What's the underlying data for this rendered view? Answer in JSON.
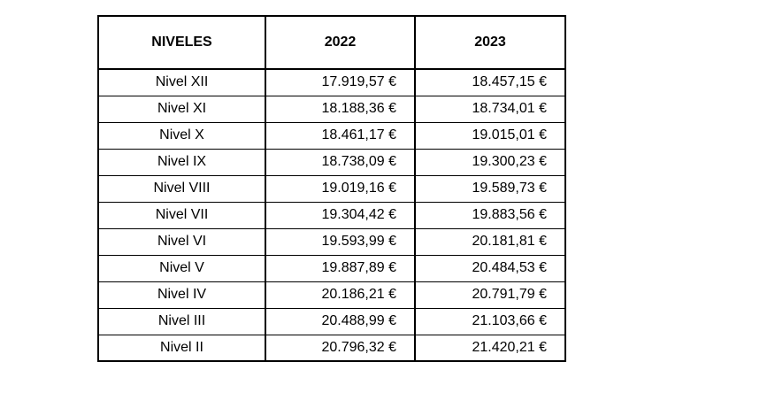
{
  "table": {
    "headers": {
      "level": "NIVELES",
      "y2022": "2022",
      "y2023": "2023"
    },
    "rows": [
      {
        "level": "Nivel XII",
        "y2022": "17.919,57 €",
        "y2023": "18.457,15 €"
      },
      {
        "level": "Nivel XI",
        "y2022": "18.188,36 €",
        "y2023": "18.734,01 €"
      },
      {
        "level": "Nivel X",
        "y2022": "18.461,17 €",
        "y2023": "19.015,01 €"
      },
      {
        "level": "Nivel IX",
        "y2022": "18.738,09 €",
        "y2023": "19.300,23 €"
      },
      {
        "level": "Nivel VIII",
        "y2022": "19.019,16 €",
        "y2023": "19.589,73 €"
      },
      {
        "level": "Nivel VII",
        "y2022": "19.304,42 €",
        "y2023": "19.883,56 €"
      },
      {
        "level": "Nivel VI",
        "y2022": "19.593,99 €",
        "y2023": "20.181,81 €"
      },
      {
        "level": "Nivel V",
        "y2022": "19.887,89 €",
        "y2023": "20.484,53 €"
      },
      {
        "level": "Nivel IV",
        "y2022": "20.186,21 €",
        "y2023": "20.791,79 €"
      },
      {
        "level": "Nivel III",
        "y2022": "20.488,99 €",
        "y2023": "21.103,66 €"
      },
      {
        "level": "Nivel II",
        "y2022": "20.796,32 €",
        "y2023": "21.420,21 €"
      }
    ],
    "border_color": "#000000",
    "text_color": "#000000",
    "background": "#ffffff"
  }
}
